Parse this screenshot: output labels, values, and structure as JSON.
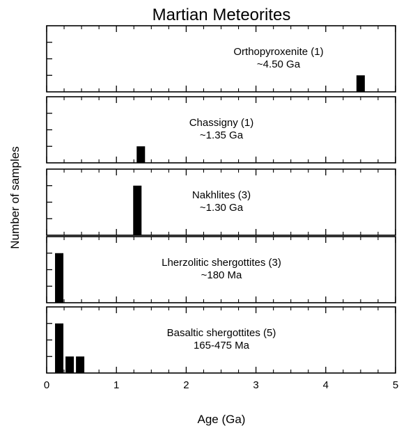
{
  "chart_data": {
    "type": "bar",
    "title": "Martian Meteorites",
    "xlabel": "Age (Ga)",
    "ylabel": "Number of samples",
    "xlim": [
      0,
      5
    ],
    "xticks": [
      "0",
      "1",
      "2",
      "3",
      "4",
      "5"
    ],
    "grid": false,
    "bar_color": "#000000",
    "panels": [
      {
        "label": "Orthopyroxenite (1)",
        "sublabel": "~4.50 Ga",
        "ylim": [
          0,
          4
        ],
        "bars": [
          {
            "x": 4.5,
            "count": 1
          }
        ]
      },
      {
        "label": "Chassigny (1)",
        "sublabel": "~1.35 Ga",
        "ylim": [
          0,
          4
        ],
        "bars": [
          {
            "x": 1.35,
            "count": 1
          }
        ]
      },
      {
        "label": "Nakhlites (3)",
        "sublabel": "~1.30 Ga",
        "ylim": [
          0,
          4
        ],
        "bars": [
          {
            "x": 1.3,
            "count": 3
          }
        ]
      },
      {
        "label": "Lherzolitic shergottites (3)",
        "sublabel": "~180 Ma",
        "ylim": [
          0,
          4
        ],
        "bars": [
          {
            "x": 0.18,
            "count": 3
          }
        ]
      },
      {
        "label": "Basaltic shergottites (5)",
        "sublabel": "165-475 Ma",
        "ylim": [
          0,
          4
        ],
        "bars": [
          {
            "x": 0.18,
            "count": 3
          },
          {
            "x": 0.33,
            "count": 1
          },
          {
            "x": 0.48,
            "count": 1
          }
        ]
      }
    ]
  }
}
